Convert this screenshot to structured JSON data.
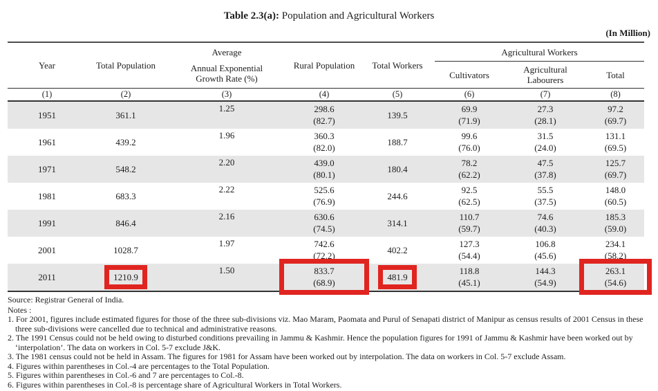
{
  "title": {
    "prefix": "Table 2.3(a):",
    "text": " Population and Agricultural Workers"
  },
  "unit_label": "(In Million)",
  "highlight_color": "#e02420",
  "table": {
    "headers": {
      "year": "Year",
      "total_population": "Total Population",
      "growth_lines": [
        "Average",
        "Annual Exponential",
        "Growth Rate (%)"
      ],
      "rural_population": "Rural Population",
      "total_workers": "Total Workers",
      "agricultural_workers_group": "Agricultural Workers",
      "cultivators": "Cultivators",
      "agricultural_labourers": "Agricultural Labourers",
      "total": "Total"
    },
    "col_numbers": [
      "(1)",
      "(2)",
      "(3)",
      "(4)",
      "(5)",
      "(6)",
      "(7)",
      "(8)"
    ],
    "rows": [
      {
        "year": "1951",
        "total_population": "361.1",
        "growth_rate": "1.25",
        "rural": {
          "v": "298.6",
          "p": "(82.7)"
        },
        "total_workers": "139.5",
        "cultivators": {
          "v": "69.9",
          "p": "(71.9)"
        },
        "agricultural_labourers": {
          "v": "27.3",
          "p": "(28.1)"
        },
        "total": {
          "v": "97.2",
          "p": "(69.7)"
        }
      },
      {
        "year": "1961",
        "total_population": "439.2",
        "growth_rate": "1.96",
        "rural": {
          "v": "360.3",
          "p": "(82.0)"
        },
        "total_workers": "188.7",
        "cultivators": {
          "v": "99.6",
          "p": "(76.0)"
        },
        "agricultural_labourers": {
          "v": "31.5",
          "p": "(24.0)"
        },
        "total": {
          "v": "131.1",
          "p": "(69.5)"
        }
      },
      {
        "year": "1971",
        "total_population": "548.2",
        "growth_rate": "2.20",
        "rural": {
          "v": "439.0",
          "p": "(80.1)"
        },
        "total_workers": "180.4",
        "cultivators": {
          "v": "78.2",
          "p": "(62.2)"
        },
        "agricultural_labourers": {
          "v": "47.5",
          "p": "(37.8)"
        },
        "total": {
          "v": "125.7",
          "p": "(69.7)"
        }
      },
      {
        "year": "1981",
        "total_population": "683.3",
        "growth_rate": "2.22",
        "rural": {
          "v": "525.6",
          "p": "(76.9)"
        },
        "total_workers": "244.6",
        "cultivators": {
          "v": "92.5",
          "p": "(62.5)"
        },
        "agricultural_labourers": {
          "v": "55.5",
          "p": "(37.5)"
        },
        "total": {
          "v": "148.0",
          "p": "(60.5)"
        }
      },
      {
        "year": "1991",
        "total_population": "846.4",
        "growth_rate": "2.16",
        "rural": {
          "v": "630.6",
          "p": "(74.5)"
        },
        "total_workers": "314.1",
        "cultivators": {
          "v": "110.7",
          "p": "(59.7)"
        },
        "agricultural_labourers": {
          "v": "74.6",
          "p": "(40.3)"
        },
        "total": {
          "v": "185.3",
          "p": "(59.0)"
        }
      },
      {
        "year": "2001",
        "total_population": "1028.7",
        "growth_rate": "1.97",
        "rural": {
          "v": "742.6",
          "p": "(72.2)"
        },
        "total_workers": "402.2",
        "cultivators": {
          "v": "127.3",
          "p": "(54.4)"
        },
        "agricultural_labourers": {
          "v": "106.8",
          "p": "(45.6)"
        },
        "total": {
          "v": "234.1",
          "p": "(58.2)"
        }
      },
      {
        "year": "2011",
        "total_population": "1210.9",
        "growth_rate": "1.50",
        "rural": {
          "v": "833.7",
          "p": "(68.9)"
        },
        "total_workers": "481.9",
        "cultivators": {
          "v": "118.8",
          "p": "(45.1)"
        },
        "agricultural_labourers": {
          "v": "144.3",
          "p": "(54.9)"
        },
        "total": {
          "v": "263.1",
          "p": "(54.6)"
        }
      }
    ],
    "highlighted_cells": [
      {
        "row": "2011",
        "column": "total_population",
        "value": "1210.9"
      },
      {
        "row": "2011",
        "column": "rural_population",
        "value": "833.7 (68.9)"
      },
      {
        "row": "2011",
        "column": "total_workers",
        "value": "481.9"
      },
      {
        "row": "2011",
        "column": "agricultural_workers_total",
        "value": "263.1 (54.6)"
      }
    ]
  },
  "source": "Source: Registrar General of India.",
  "notes_label": "Notes :",
  "notes": [
    "1. For 2001, figures include estimated figures for those of the three sub-divisions viz. Mao Maram, Paomata and Purul of Senapati district of Manipur as census results of 2001 Census in these three sub-divisions were cancelled due to technical and administrative reasons.",
    "2. The 1991 Census could not be held owing to disturbed conditions prevailing in Jammu & Kashmir. Hence the population figures for 1991 of Jammu & Kashmir have been worked out by ‘interpolation’. The data on workers in Col. 5-7 exclude J&K.",
    "3. The 1981 census could not be held in Assam. The figures for 1981 for Assam have been worked out by interpolation. The data on workers in Col. 5-7 exclude Assam.",
    "4. Figures within parentheses in Col.-4 are percentages to the Total Population.",
    "5. Figures within parentheses in Col.-6 and 7 are percentages to Col.-8.",
    "6. Figures within parentheses in Col.-8 is percentage share of Agricultural Workers in Total Workers."
  ]
}
